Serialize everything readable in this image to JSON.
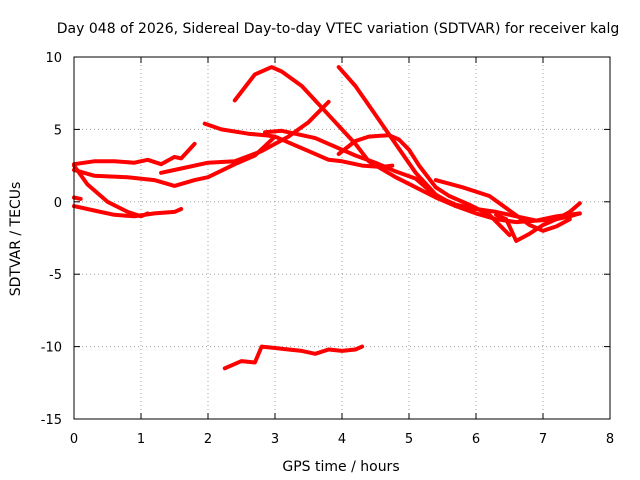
{
  "chart_data": {
    "type": "line",
    "title": "Day 048 of 2026, Sidereal Day-to-day VTEC variation (SDTVAR) for receiver kalg",
    "xlabel": "GPS time / hours",
    "ylabel": "SDTVAR / TECUs",
    "xlim": [
      0,
      8
    ],
    "ylim": [
      -15,
      10
    ],
    "xticks": [
      0,
      1,
      2,
      3,
      4,
      5,
      6,
      7,
      8
    ],
    "yticks": [
      -15,
      -10,
      -5,
      0,
      5,
      10
    ],
    "xtick_labels": [
      "0",
      "1",
      "2",
      "3",
      "4",
      "5",
      "6",
      "7",
      "8"
    ],
    "ytick_labels": [
      "-15",
      "-10",
      "-5",
      "0",
      "5",
      "10"
    ],
    "grid": true,
    "color": "#ff0000",
    "series": [
      {
        "name": "s1",
        "x": [
          0,
          0.3,
          0.6,
          0.9,
          1.1,
          1.3,
          1.5,
          1.6,
          1.8
        ],
        "y": [
          2.6,
          2.8,
          2.8,
          2.7,
          2.9,
          2.6,
          3.1,
          3.0,
          4.0
        ]
      },
      {
        "name": "s2",
        "x": [
          0,
          0.3,
          0.8,
          1.2,
          1.5,
          1.8,
          2.0,
          2.4,
          2.7,
          3.0
        ],
        "y": [
          2.2,
          1.8,
          1.7,
          1.5,
          1.1,
          1.5,
          1.7,
          2.6,
          3.2,
          4.5
        ]
      },
      {
        "name": "s3",
        "x": [
          0,
          0.1
        ],
        "y": [
          0.3,
          0.2
        ]
      },
      {
        "name": "s4",
        "x": [
          0,
          0.3,
          0.6,
          0.9,
          1.2,
          1.5,
          1.6
        ],
        "y": [
          -0.3,
          -0.6,
          -0.9,
          -1.0,
          -0.8,
          -0.7,
          -0.5
        ]
      },
      {
        "name": "s5",
        "x": [
          0,
          0.2,
          0.5,
          0.8,
          1.0,
          1.1
        ],
        "y": [
          2.5,
          1.2,
          0.0,
          -0.7,
          -1.0,
          -0.8
        ]
      },
      {
        "name": "s6",
        "x": [
          1.3,
          1.6,
          2.0,
          2.4,
          2.8,
          3.2,
          3.5,
          3.8
        ],
        "y": [
          2.0,
          2.3,
          2.7,
          2.8,
          3.5,
          4.5,
          5.5,
          6.9
        ]
      },
      {
        "name": "s7",
        "x": [
          1.95,
          2.2,
          2.6,
          2.85,
          3.0,
          3.2,
          3.5,
          3.8,
          4.0,
          4.3,
          4.6,
          4.75
        ],
        "y": [
          5.4,
          5.0,
          4.7,
          4.6,
          4.5,
          4.1,
          3.5,
          2.9,
          2.8,
          2.5,
          2.4,
          2.5
        ]
      },
      {
        "name": "s8",
        "x": [
          2.4,
          2.7,
          2.95,
          3.1,
          3.4,
          3.7,
          3.9,
          4.2,
          4.4,
          4.8,
          5.1,
          5.4,
          5.7,
          6.0,
          6.3,
          6.6,
          6.9,
          7.2,
          7.55
        ],
        "y": [
          7.0,
          8.8,
          9.3,
          9.0,
          8.0,
          6.5,
          5.5,
          4.0,
          2.8,
          1.7,
          1.0,
          0.3,
          -0.3,
          -0.8,
          -1.2,
          -1.4,
          -1.3,
          -1.0,
          -0.8
        ]
      },
      {
        "name": "s9",
        "x": [
          2.85,
          3.1,
          3.3,
          3.6,
          3.9,
          4.2,
          4.5,
          4.8,
          5.1,
          5.4,
          5.7,
          6.0
        ],
        "y": [
          4.8,
          4.9,
          4.7,
          4.4,
          3.8,
          3.2,
          2.7,
          2.1,
          1.6,
          0.4,
          -0.2,
          -0.5
        ]
      },
      {
        "name": "s10",
        "x": [
          3.95,
          4.2,
          4.5,
          4.8,
          5.1,
          5.4,
          5.7,
          6.0,
          6.3,
          6.6,
          6.9,
          7.2,
          7.4,
          7.55
        ],
        "y": [
          9.3,
          8.0,
          6.0,
          4.0,
          2.0,
          0.5,
          -0.3,
          -0.5,
          -0.7,
          -1.0,
          -1.3,
          -1.2,
          -0.7,
          -0.1
        ]
      },
      {
        "name": "s11",
        "x": [
          3.95,
          4.2,
          4.4,
          4.7,
          4.85,
          5.0,
          5.15,
          5.4,
          5.6,
          5.9,
          6.2,
          6.5
        ],
        "y": [
          3.3,
          4.2,
          4.5,
          4.6,
          4.3,
          3.6,
          2.5,
          1.0,
          0.4,
          -0.2,
          -0.9,
          -2.3
        ]
      },
      {
        "name": "s12",
        "x": [
          5.4,
          5.8,
          6.2,
          6.5,
          6.8,
          7.0,
          7.2,
          7.4
        ],
        "y": [
          1.5,
          1.0,
          0.4,
          -0.6,
          -1.6,
          -2.0,
          -1.7,
          -1.2
        ]
      },
      {
        "name": "s13",
        "x": [
          6.3,
          6.45,
          6.6,
          6.8,
          7.0,
          7.2,
          7.4,
          7.55
        ],
        "y": [
          -0.9,
          -1.2,
          -2.7,
          -2.2,
          -1.6,
          -1.2,
          -1.0,
          -0.8
        ]
      },
      {
        "name": "s14",
        "x": [
          2.25,
          2.5,
          2.7,
          2.8,
          3.0,
          3.2,
          3.4,
          3.6,
          3.8,
          4.0,
          4.2,
          4.3
        ],
        "y": [
          -11.5,
          -11.0,
          -11.1,
          -10.0,
          -10.1,
          -10.2,
          -10.3,
          -10.5,
          -10.2,
          -10.3,
          -10.2,
          -10.0
        ]
      }
    ]
  }
}
